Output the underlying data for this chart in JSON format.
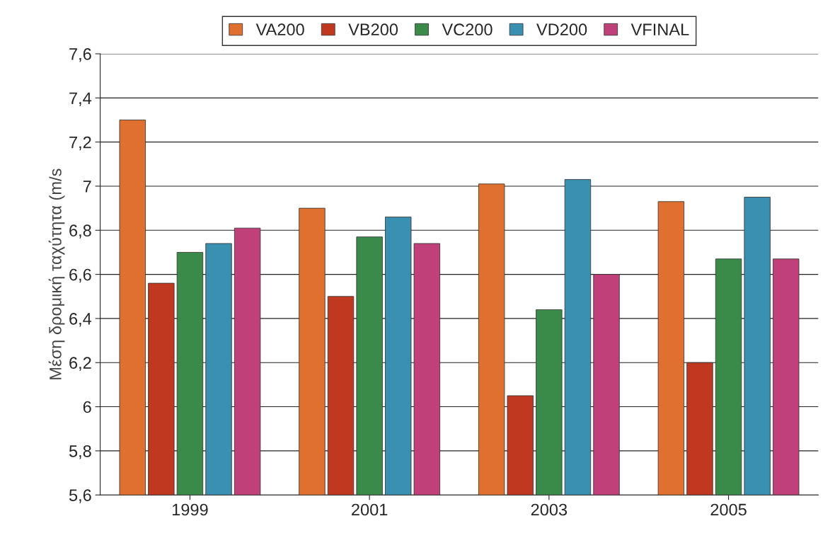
{
  "chart_data": {
    "type": "bar",
    "ylabel": "Μέση δρομική ταχύτητα (m/s",
    "categories": [
      "1999",
      "2001",
      "2003",
      "2005"
    ],
    "series": [
      {
        "name": "VA200",
        "color": "#e07030",
        "values": [
          7.3,
          6.9,
          7.01,
          6.93
        ]
      },
      {
        "name": "VB200",
        "color": "#c03820",
        "values": [
          6.56,
          6.5,
          6.05,
          6.2
        ]
      },
      {
        "name": "VC200",
        "color": "#3a8a4a",
        "values": [
          6.7,
          6.77,
          6.44,
          6.67
        ]
      },
      {
        "name": "VD200",
        "color": "#3a90b0",
        "values": [
          6.74,
          6.86,
          7.03,
          6.95
        ]
      },
      {
        "name": "VFINAL",
        "color": "#c0407a",
        "values": [
          6.81,
          6.74,
          6.6,
          6.67
        ]
      }
    ],
    "ylim": [
      5.6,
      7.6
    ],
    "yticks": [
      {
        "value": 5.6,
        "label": "5,6"
      },
      {
        "value": 5.8,
        "label": "5,8"
      },
      6,
      {
        "value": 6.2,
        "label": "6,2"
      },
      {
        "value": 6.4,
        "label": "6,4"
      },
      {
        "value": 6.6,
        "label": "6,6"
      },
      {
        "value": 6.8,
        "label": "6,8"
      },
      7,
      {
        "value": 7.2,
        "label": "7,2"
      },
      {
        "value": 7.4,
        "label": "7,4"
      },
      {
        "value": 7.6,
        "label": "7,6"
      }
    ],
    "grid": "y",
    "legend": "top"
  }
}
